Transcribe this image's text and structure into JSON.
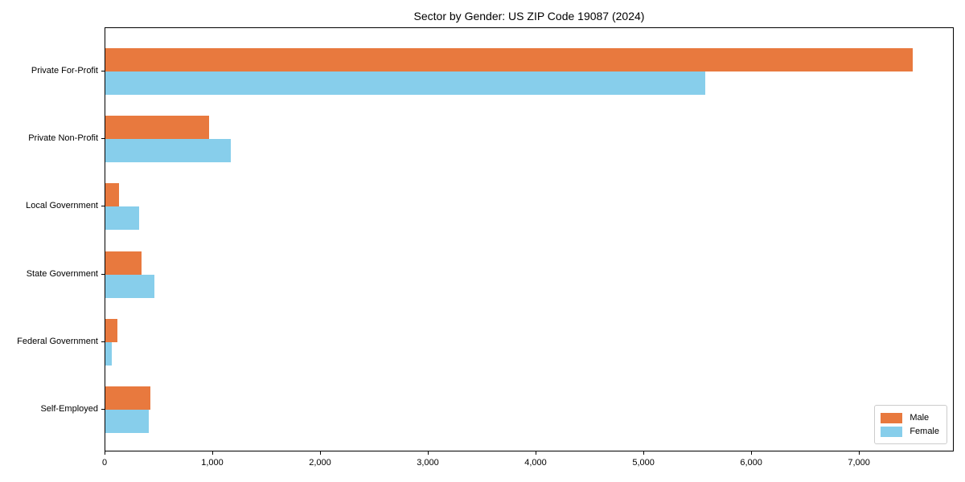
{
  "title": "Sector by Gender: US ZIP Code 19087 (2024)",
  "colors": {
    "male": "#e8793e",
    "female": "#87ceeb",
    "axis": "#000000",
    "legend_border": "#cccccc",
    "background": "#ffffff"
  },
  "legend": {
    "position": "lower-right",
    "items": [
      "Male",
      "Female"
    ]
  },
  "chart_data": {
    "type": "bar",
    "orientation": "horizontal",
    "title": "Sector by Gender: US ZIP Code 19087 (2024)",
    "categories": [
      "Private For-Profit",
      "Private Non-Profit",
      "Local Government",
      "State Government",
      "Federal Government",
      "Self-Employed"
    ],
    "series": [
      {
        "name": "Male",
        "color": "#e8793e",
        "values": [
          7490,
          960,
          130,
          335,
          110,
          420
        ]
      },
      {
        "name": "Female",
        "color": "#87ceeb",
        "values": [
          5570,
          1165,
          315,
          455,
          60,
          400
        ]
      }
    ],
    "xticks": [
      0,
      1000,
      2000,
      3000,
      4000,
      5000,
      6000,
      7000
    ],
    "xtick_labels": [
      "0",
      "1,000",
      "2,000",
      "3,000",
      "4,000",
      "5,000",
      "6,000",
      "7,000"
    ],
    "xlim": [
      0,
      7880
    ],
    "xlabel": "",
    "ylabel": "",
    "grid": false,
    "legend_position": "lower right"
  }
}
